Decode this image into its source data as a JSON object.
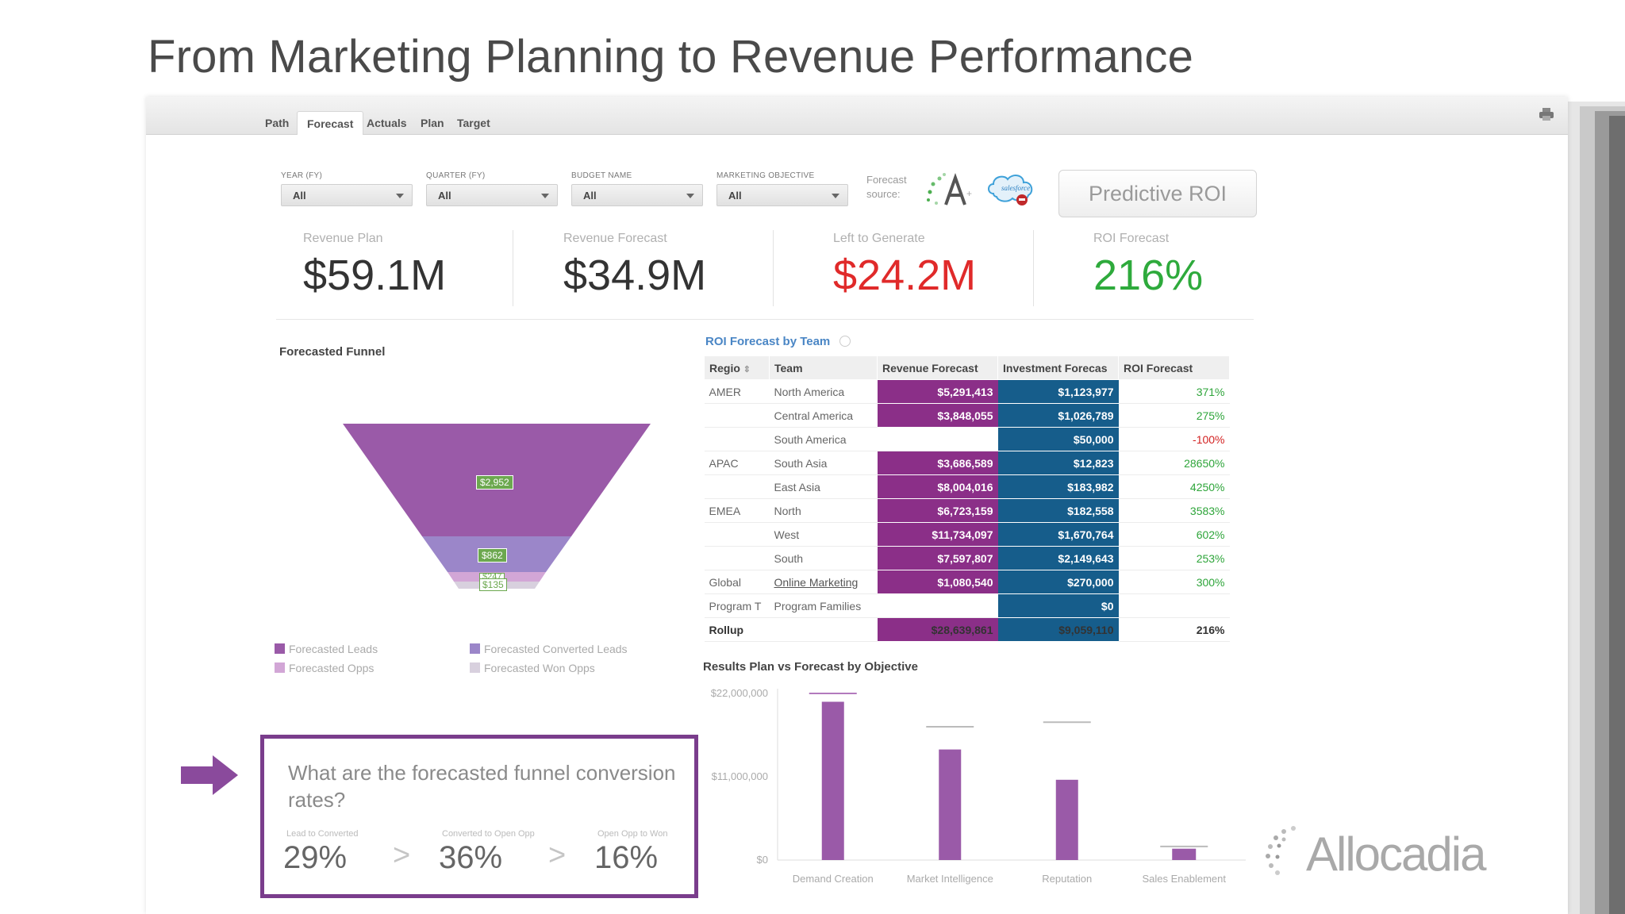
{
  "slide": {
    "title": "From Marketing Planning to Revenue Performance"
  },
  "tabs": [
    {
      "label": "Path"
    },
    {
      "label": "Forecast"
    },
    {
      "label": "Actuals"
    },
    {
      "label": "Plan"
    },
    {
      "label": "Target"
    }
  ],
  "filters": [
    {
      "label": "YEAR (FY)",
      "value": "All"
    },
    {
      "label": "QUARTER (FY)",
      "value": "All"
    },
    {
      "label": "BUDGET NAME",
      "value": "All"
    },
    {
      "label": "MARKETING OBJECTIVE",
      "value": "All"
    }
  ],
  "forecast_source": {
    "label_line1": "Forecast",
    "label_line2": "source:",
    "icons": [
      "allocadia-a-icon",
      "salesforce-icon"
    ]
  },
  "predictive_roi_button": "Predictive ROI",
  "kpis": [
    {
      "label": "Revenue Plan",
      "value": "$59.1M",
      "color": "#333333"
    },
    {
      "label": "Revenue Forecast",
      "value": "$34.9M",
      "color": "#333333"
    },
    {
      "label": "Left to Generate",
      "value": "$24.2M",
      "color": "#e02a2a"
    },
    {
      "label": "ROI Forecast",
      "value": "216%",
      "color": "#2eaa3c"
    }
  ],
  "funnel": {
    "title": "Forecasted Funnel",
    "stage_labels": [
      "$2,952",
      "$862",
      "$247",
      "$135"
    ],
    "legend": [
      {
        "label": "Forecasted Leads",
        "color": "#9a5aa8"
      },
      {
        "label": "Forecasted Converted Leads",
        "color": "#9b86c9"
      },
      {
        "label": "Forecasted Opps",
        "color": "#d2a6d6"
      },
      {
        "label": "Forecasted Won Opps",
        "color": "#d8d0de"
      }
    ]
  },
  "roi_table": {
    "title": "ROI Forecast by Team",
    "columns": [
      "Regio",
      "Team",
      "Revenue Forecast",
      "Investment Forecas",
      "ROI Forecast"
    ],
    "rows": [
      {
        "region": "AMER",
        "team": "North America",
        "revenue": "$5,291,413",
        "investment": "$1,123,977",
        "roi": "371%"
      },
      {
        "region": "",
        "team": "Central America",
        "revenue": "$3,848,055",
        "investment": "$1,026,789",
        "roi": "275%"
      },
      {
        "region": "",
        "team": "South America",
        "revenue": "",
        "investment": "$50,000",
        "roi": "-100%"
      },
      {
        "region": "APAC",
        "team": "South Asia",
        "revenue": "$3,686,589",
        "investment": "$12,823",
        "roi": "28650%"
      },
      {
        "region": "",
        "team": "East Asia",
        "revenue": "$8,004,016",
        "investment": "$183,982",
        "roi": "4250%"
      },
      {
        "region": "EMEA",
        "team": "North",
        "revenue": "$6,723,159",
        "investment": "$182,558",
        "roi": "3583%"
      },
      {
        "region": "",
        "team": "West",
        "revenue": "$11,734,097",
        "investment": "$1,670,764",
        "roi": "602%"
      },
      {
        "region": "",
        "team": "South",
        "revenue": "$7,597,807",
        "investment": "$2,149,643",
        "roi": "253%"
      },
      {
        "region": "Global",
        "team": "Online Marketing",
        "revenue": "$1,080,540",
        "investment": "$270,000",
        "roi": "300%"
      },
      {
        "region": "Program T",
        "team": "Program Families",
        "revenue": "",
        "investment": "$0",
        "roi": ""
      }
    ],
    "rollup": {
      "region": "Rollup",
      "team": "",
      "revenue": "$28,639,861",
      "investment": "$9,059,110",
      "roi": "216%"
    }
  },
  "chart_data": {
    "type": "bar",
    "title": "Results Plan vs Forecast by Objective",
    "categories": [
      "Demand Creation",
      "Market Intelligence",
      "Reputation",
      "Sales Enablement"
    ],
    "series": [
      {
        "values": [
          20900000,
          14600000,
          10600000,
          1500000
        ]
      },
      {
        "values": [
          22000000,
          17600000,
          18200000,
          1800000
        ]
      }
    ],
    "y_ticks": [
      "$22,000,000",
      "$11,000,000",
      "$0"
    ],
    "ylim": [
      0,
      22000000
    ]
  },
  "callout": {
    "question": "What are the forecasted funnel conversion rates?",
    "rates": [
      {
        "label": "Lead to Converted",
        "value": "29%"
      },
      {
        "label": "Converted to Open Opp",
        "value": "36%"
      },
      {
        "label": "Open Opp to Won",
        "value": "16%"
      }
    ],
    "separator": ">"
  },
  "brand": {
    "logo_text": "Allocadia",
    "accent": "#7a3d8c"
  }
}
